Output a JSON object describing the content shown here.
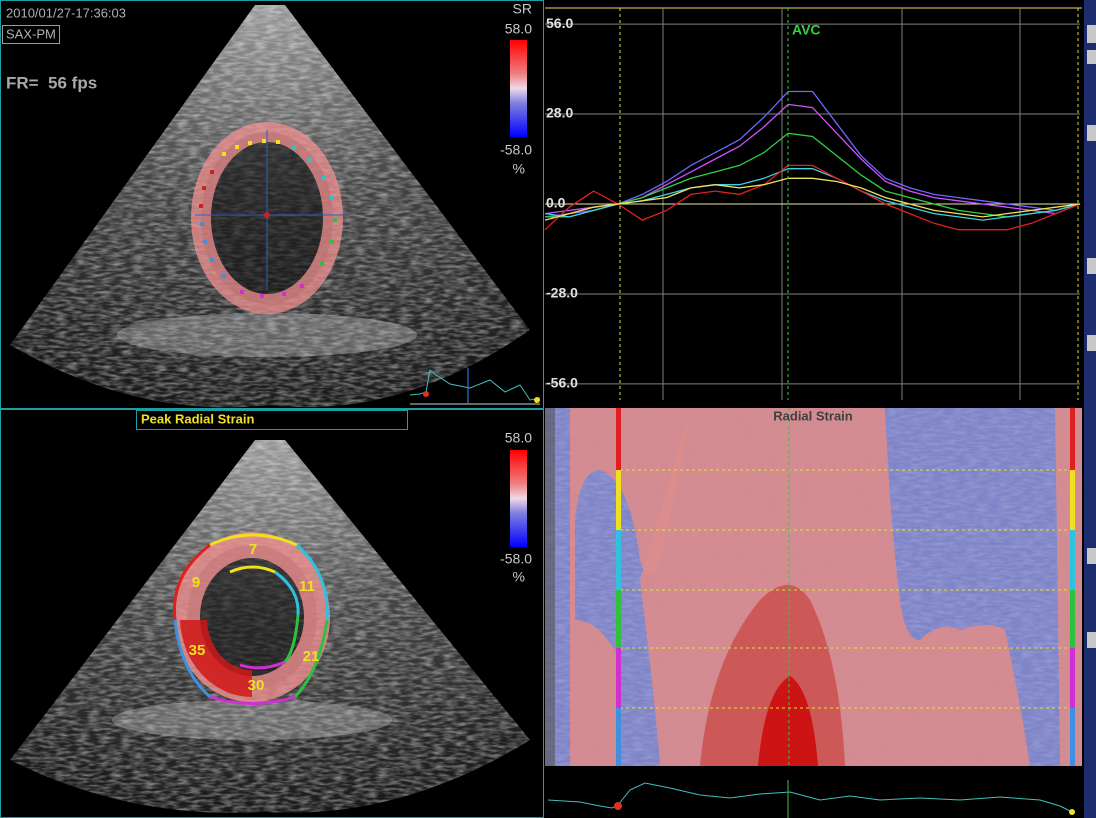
{
  "header": {
    "timestamp": "2010/01/27-17:36:03",
    "view": "SAX-PM",
    "frame_rate": "FR=  56 fps"
  },
  "top_image": {
    "scale_title": "SR",
    "scale_max": "58.0",
    "scale_min": "-58.0",
    "unit": "%"
  },
  "bottom_image": {
    "title": "Peak Radial Strain",
    "scale_max": "58.0",
    "scale_min": "-58.0",
    "unit": "%",
    "segments": [
      7,
      9,
      11,
      35,
      21,
      30
    ]
  },
  "heatmap": {
    "title": "Radial Strain"
  },
  "chart_data": {
    "type": "line",
    "annotation": "AVC",
    "categories": [
      null,
      null,
      null,
      null,
      null,
      null,
      null,
      null,
      null,
      null,
      null,
      null,
      null,
      null,
      null,
      null,
      null,
      null,
      null,
      null,
      null,
      null,
      null
    ],
    "series": [
      {
        "color": "#6a6aff",
        "values": [
          -4,
          -3,
          -2,
          0,
          3,
          7,
          12,
          16,
          20,
          27,
          35,
          35,
          25,
          15,
          8,
          5,
          3,
          2,
          1,
          0,
          -1,
          -2,
          0
        ]
      },
      {
        "color": "#d050ff",
        "values": [
          -3,
          -2,
          -1,
          0,
          2,
          6,
          10,
          14,
          18,
          24,
          31,
          30,
          22,
          14,
          7,
          4,
          2,
          1,
          0,
          -1,
          -2,
          -3,
          0
        ]
      },
      {
        "color": "#30d040",
        "values": [
          -4,
          -4,
          -2,
          0,
          2,
          5,
          8,
          10,
          12,
          16,
          22,
          21,
          15,
          9,
          4,
          2,
          0,
          -2,
          -3,
          -4,
          -3,
          -2,
          0
        ]
      },
      {
        "color": "#40d0e0",
        "values": [
          -3,
          -4,
          -2,
          0,
          1,
          3,
          5,
          6,
          6,
          8,
          11,
          11,
          8,
          4,
          1,
          -1,
          -3,
          -4,
          -5,
          -4,
          -3,
          -2,
          0
        ]
      },
      {
        "color": "#e02020",
        "values": [
          -8,
          -1,
          4,
          0,
          -5,
          -2,
          3,
          4,
          3,
          6,
          12,
          12,
          8,
          4,
          0,
          -3,
          -6,
          -8,
          -8,
          -8,
          -6,
          -3,
          0
        ]
      },
      {
        "color": "#f0e060",
        "values": [
          -5,
          -3,
          -1,
          0,
          1,
          2,
          5,
          6,
          5,
          6,
          8,
          8,
          7,
          5,
          2,
          0,
          -2,
          -3,
          -4,
          -3,
          -2,
          -1,
          0
        ]
      }
    ],
    "ylim": [
      -61,
      61
    ],
    "yticks": [
      {
        "value": 56,
        "label": "56.0"
      },
      {
        "value": 28,
        "label": "28.0"
      },
      {
        "value": 0,
        "label": "0.0"
      },
      {
        "value": -28,
        "label": "-28.0"
      },
      {
        "value": -56,
        "label": "-56.0"
      }
    ],
    "grid": true
  }
}
